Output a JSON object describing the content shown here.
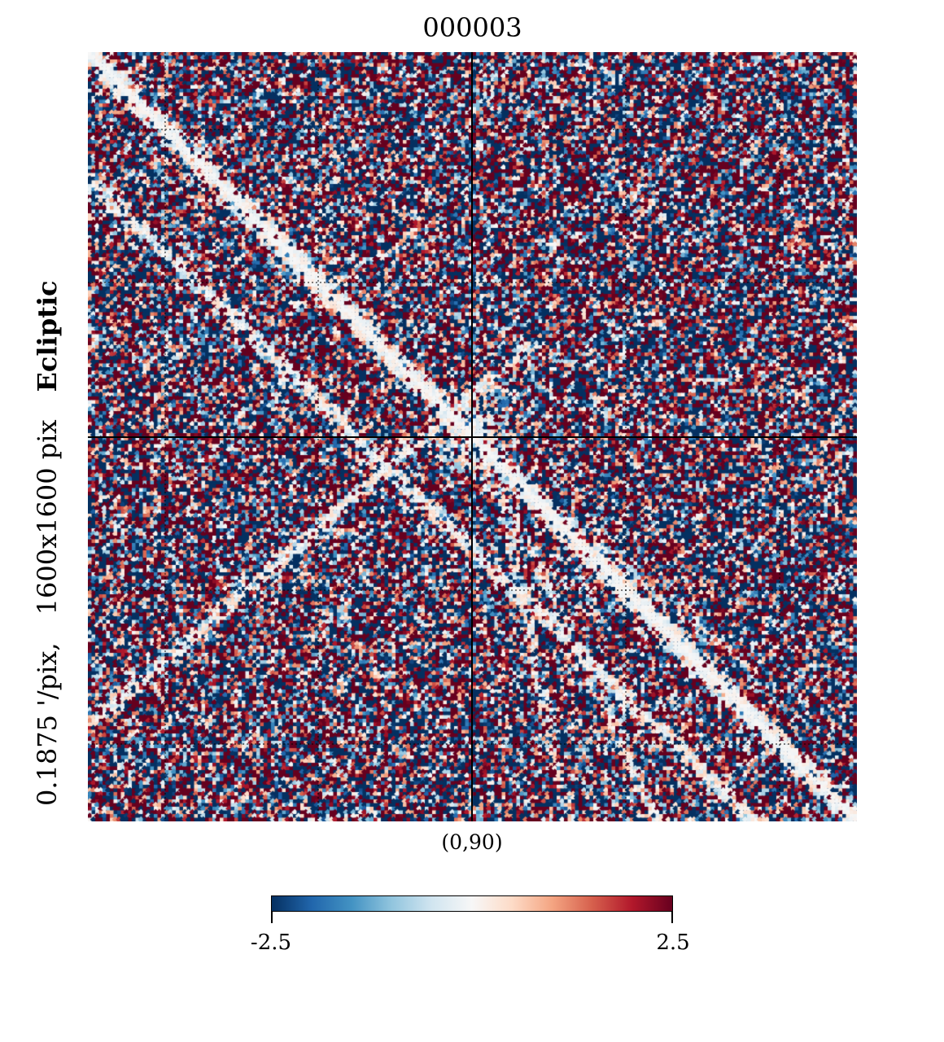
{
  "title": "000003",
  "side_label": {
    "resolution": "0.1875 '/pix,",
    "size": "1600x1600 pix",
    "coord_system": "Ecliptic"
  },
  "center_label": "(0,90)",
  "chart_data": {
    "type": "heatmap",
    "title": "000003",
    "projection": "gnomonic",
    "center": "(0,90)",
    "resolution_arcmin_per_pix": 0.1875,
    "xsize": 1600,
    "ysize": 1600,
    "coord": "Ecliptic",
    "colormap": "RdBu_r",
    "colors": [
      "#053061",
      "#2166ac",
      "#4393c3",
      "#92c5de",
      "#d1e5f0",
      "#f7f7f7",
      "#fddbc7",
      "#f4a582",
      "#d6604d",
      "#b2182b",
      "#67001f"
    ],
    "vmin": -2.5,
    "vmax": 2.5,
    "colorbar": {
      "min_label": "-2.5",
      "max_label": "2.5",
      "orientation": "horizontal"
    },
    "graticule": true,
    "crosshair_color": "#000000",
    "grid_line_color": "#000000"
  }
}
